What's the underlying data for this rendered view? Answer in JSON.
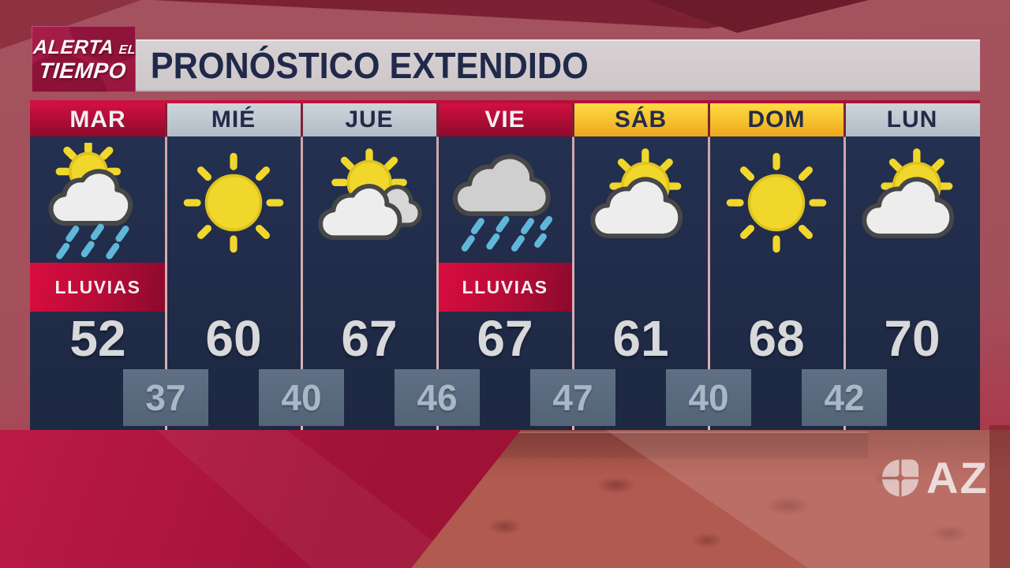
{
  "brand": {
    "word_main": "ALERTA",
    "word_small": "EL",
    "word2": "TIEMPO"
  },
  "header": {
    "title": "PRONÓSTICO EXTENDIDO"
  },
  "forecast": {
    "days": [
      {
        "name": "MAR",
        "header_style": "crimson",
        "icon": "sun-cloud-rain",
        "condition": "LLUVIAS",
        "high": "52"
      },
      {
        "name": "MIÉ",
        "header_style": "gray",
        "icon": "sun",
        "condition": null,
        "high": "60"
      },
      {
        "name": "JUE",
        "header_style": "gray",
        "icon": "sun-two-clouds",
        "condition": null,
        "high": "67"
      },
      {
        "name": "VIE",
        "header_style": "crimson",
        "icon": "rain-cloud",
        "condition": "LLUVIAS",
        "high": "67"
      },
      {
        "name": "SÁB",
        "header_style": "yellow",
        "icon": "sun-cloud",
        "condition": null,
        "high": "61"
      },
      {
        "name": "DOM",
        "header_style": "yellow",
        "icon": "sun",
        "condition": null,
        "high": "68"
      },
      {
        "name": "LUN",
        "header_style": "gray",
        "icon": "sun-cloud",
        "condition": null,
        "high": "70"
      }
    ],
    "lows": [
      "37",
      "40",
      "46",
      "47",
      "40",
      "42"
    ]
  },
  "station": {
    "logo": "univision-u",
    "call": "AZ"
  },
  "colors": {
    "accent_crimson": "#c00d3c",
    "panel_navy": "#202b47",
    "header_gray": "#c5ccd4",
    "header_yellow": "#ffd22e",
    "low_box_slate": "#5b6c81",
    "sun_yellow": "#f1d72b",
    "rain_blue": "#5fb7da",
    "temp_text": "#d9d8da"
  }
}
